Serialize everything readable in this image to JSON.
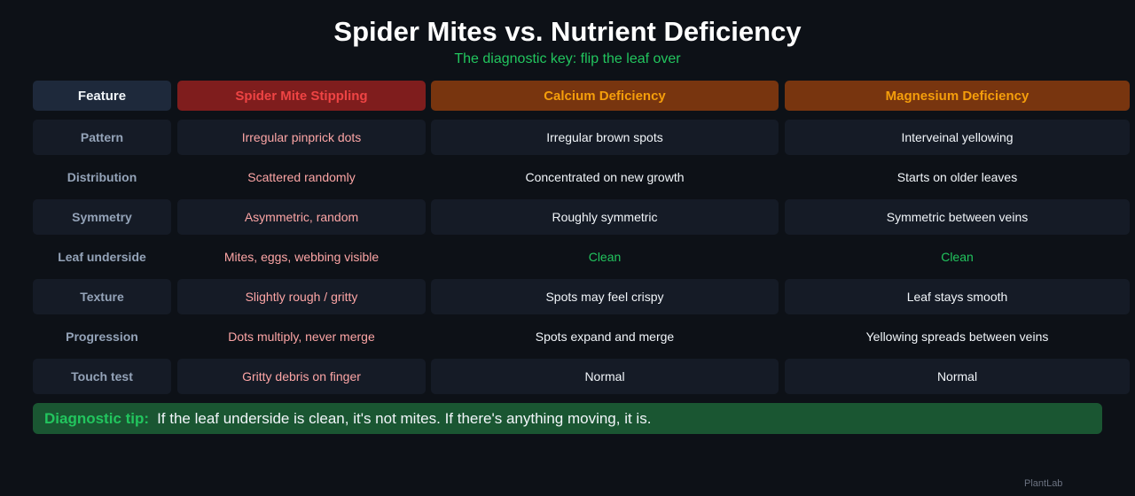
{
  "title": "Spider Mites vs. Nutrient Deficiency",
  "subtitle": "The diagnostic key: flip the leaf over",
  "columns": [
    {
      "label": "Feature",
      "bg": "#1e293b",
      "color": "#f1f5f9"
    },
    {
      "label": "Spider Mite Stippling",
      "bg": "#7f1d1d",
      "color": "#ef4444"
    },
    {
      "label": "Calcium Deficiency",
      "bg": "#78350f",
      "color": "#f59e0b"
    },
    {
      "label": "Magnesium Deficiency",
      "bg": "#78350f",
      "color": "#f59e0b"
    }
  ],
  "rows": [
    {
      "feature": "Pattern",
      "mite": "Irregular pinprick dots",
      "calcium": "Irregular brown spots",
      "magnesium": "Interveinal yellowing"
    },
    {
      "feature": "Distribution",
      "mite": "Scattered randomly",
      "calcium": "Concentrated on new growth",
      "magnesium": "Starts on older leaves"
    },
    {
      "feature": "Symmetry",
      "mite": "Asymmetric, random",
      "calcium": "Roughly symmetric",
      "magnesium": "Symmetric between veins"
    },
    {
      "feature": "Leaf underside",
      "mite": "Mites, eggs, webbing visible",
      "calcium": "Clean",
      "magnesium": "Clean"
    },
    {
      "feature": "Texture",
      "mite": "Slightly rough / gritty",
      "calcium": "Spots may feel crispy",
      "magnesium": "Leaf stays smooth"
    },
    {
      "feature": "Progression",
      "mite": "Dots multiply, never merge",
      "calcium": "Spots expand and merge",
      "magnesium": "Yellowing spreads between veins"
    },
    {
      "feature": "Touch test",
      "mite": "Gritty debris on finger",
      "calcium": "Normal",
      "magnesium": "Normal"
    }
  ],
  "tip": {
    "label": "Diagnostic tip:",
    "text": "If the leaf underside is clean, it's not mites. If there's anything moving, it is."
  },
  "footer": "PlantLab"
}
